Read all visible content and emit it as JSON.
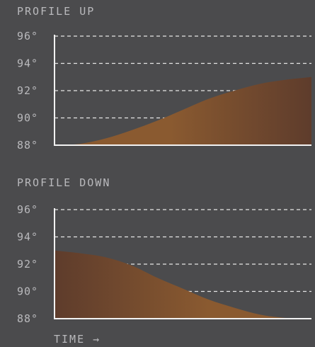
{
  "charts": {
    "up": {
      "title": "PROFILE UP"
    },
    "down": {
      "title": "PROFILE DOWN"
    },
    "xlabel": "TIME →"
  },
  "colors": {
    "background": "#4b4b4d",
    "text": "#b9b9bc",
    "grid": "#e6e6e6",
    "fill_light": "#8a5a30",
    "fill_dark": "#5e3c2c"
  },
  "chart_data": [
    {
      "type": "area",
      "title": "PROFILE UP",
      "xlabel": "TIME →",
      "ylabel": "",
      "ylim": [
        88,
        96
      ],
      "yticks": [
        "96°",
        "94°",
        "92°",
        "90°",
        "88°"
      ],
      "grid": true,
      "series": [
        {
          "values": [
            88.0,
            88.1,
            88.5,
            89.1,
            89.8,
            90.6,
            91.4,
            92.0,
            92.5,
            92.8,
            93.0
          ]
        }
      ]
    },
    {
      "type": "area",
      "title": "PROFILE DOWN",
      "xlabel": "TIME →",
      "ylabel": "",
      "ylim": [
        88,
        96
      ],
      "yticks": [
        "96°",
        "94°",
        "92°",
        "90°",
        "88°"
      ],
      "grid": true,
      "series": [
        {
          "values": [
            93.0,
            92.8,
            92.5,
            91.9,
            91.0,
            90.2,
            89.4,
            88.8,
            88.3,
            88.05,
            88.0
          ]
        }
      ]
    }
  ]
}
